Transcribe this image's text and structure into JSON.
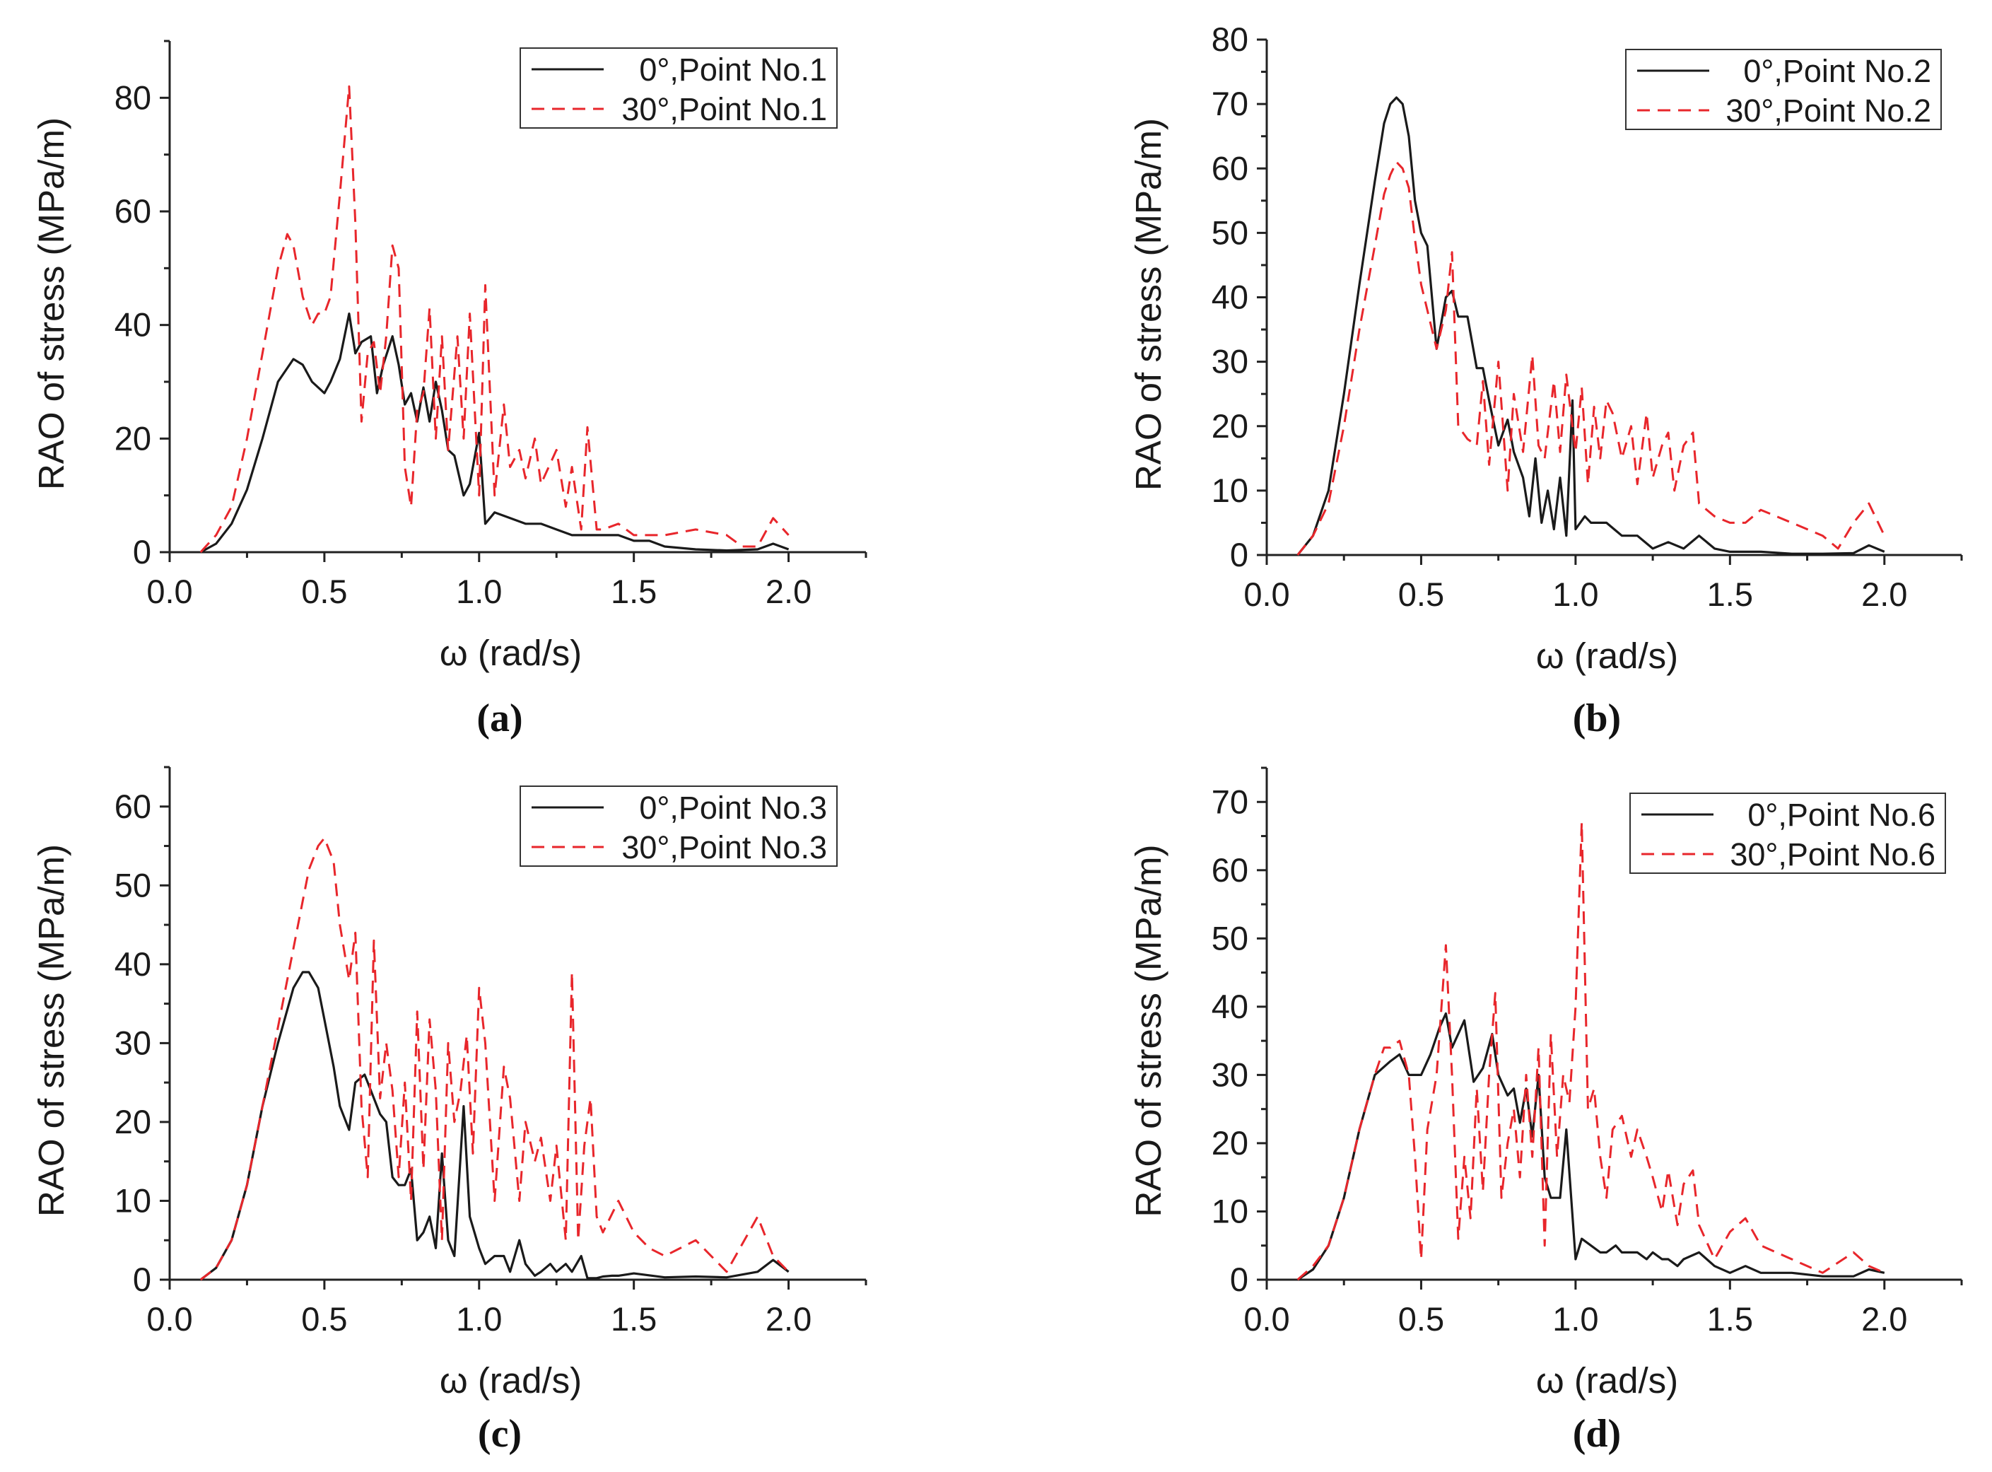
{
  "colors": {
    "series0": "#1a1a1a",
    "series1": "#e8262b"
  },
  "chart_data": [
    {
      "type": "line",
      "panel": "a",
      "caption": "(a)",
      "xlabel": "ω (rad/s)",
      "ylabel": "RAO of stress (MPa/m)",
      "xlim": [
        0.0,
        2.25
      ],
      "ylim": [
        0,
        90
      ],
      "xticks": [
        0.0,
        0.5,
        1.0,
        1.5,
        2.0
      ],
      "yticks": [
        0,
        20,
        40,
        60,
        80
      ],
      "grid": false,
      "legend": "top-right",
      "series": [
        {
          "name": "0°,Point No.1",
          "style": "solid",
          "x": [
            0.1,
            0.15,
            0.2,
            0.25,
            0.3,
            0.35,
            0.4,
            0.43,
            0.46,
            0.5,
            0.52,
            0.55,
            0.58,
            0.6,
            0.62,
            0.65,
            0.67,
            0.69,
            0.72,
            0.74,
            0.76,
            0.78,
            0.8,
            0.82,
            0.84,
            0.86,
            0.88,
            0.9,
            0.92,
            0.95,
            0.97,
            1.0,
            1.02,
            1.05,
            1.1,
            1.15,
            1.2,
            1.25,
            1.3,
            1.35,
            1.4,
            1.45,
            1.5,
            1.55,
            1.6,
            1.7,
            1.8,
            1.9,
            1.95,
            2.0
          ],
          "y": [
            0,
            1.5,
            5,
            11,
            20,
            30,
            34,
            33,
            30,
            28,
            30,
            34,
            42,
            35,
            37,
            38,
            28,
            33,
            38,
            33,
            26,
            28,
            23,
            29,
            23,
            30,
            25,
            18,
            17,
            10,
            12,
            21,
            5,
            7,
            6,
            5,
            5,
            4,
            3,
            3,
            3,
            3,
            2,
            2,
            1,
            0.5,
            0.3,
            0.5,
            1.5,
            0.5
          ]
        },
        {
          "name": "30°,Point No.1",
          "style": "dashed",
          "x": [
            0.1,
            0.15,
            0.2,
            0.25,
            0.3,
            0.35,
            0.38,
            0.4,
            0.43,
            0.46,
            0.48,
            0.5,
            0.52,
            0.55,
            0.58,
            0.6,
            0.62,
            0.64,
            0.66,
            0.68,
            0.7,
            0.72,
            0.74,
            0.76,
            0.78,
            0.8,
            0.82,
            0.84,
            0.86,
            0.88,
            0.9,
            0.93,
            0.95,
            0.97,
            1.0,
            1.02,
            1.05,
            1.08,
            1.1,
            1.13,
            1.15,
            1.18,
            1.2,
            1.25,
            1.28,
            1.3,
            1.33,
            1.35,
            1.38,
            1.4,
            1.45,
            1.5,
            1.55,
            1.6,
            1.7,
            1.8,
            1.85,
            1.9,
            1.95,
            2.0
          ],
          "y": [
            0,
            3,
            8,
            20,
            35,
            50,
            56,
            54,
            45,
            40,
            42,
            42,
            45,
            63,
            82,
            58,
            23,
            35,
            37,
            28,
            38,
            54,
            50,
            15,
            8,
            25,
            28,
            43,
            20,
            38,
            18,
            38,
            20,
            42,
            10,
            47,
            10,
            26,
            15,
            18,
            13,
            20,
            12,
            18,
            8,
            15,
            4,
            22,
            4,
            4,
            5,
            3,
            3,
            3,
            4,
            3,
            1,
            1,
            6,
            3
          ]
        }
      ]
    },
    {
      "type": "line",
      "panel": "b",
      "caption": "(b)",
      "xlabel": "ω (rad/s)",
      "ylabel": "RAO of stress (MPa/m)",
      "xlim": [
        0.0,
        2.25
      ],
      "ylim": [
        0,
        80
      ],
      "xticks": [
        0.0,
        0.5,
        1.0,
        1.5,
        2.0
      ],
      "yticks": [
        0,
        10,
        20,
        30,
        40,
        50,
        60,
        70,
        80
      ],
      "grid": false,
      "legend": "top-right",
      "series": [
        {
          "name": "0°,Point No.2",
          "style": "solid",
          "x": [
            0.1,
            0.15,
            0.2,
            0.25,
            0.3,
            0.35,
            0.38,
            0.4,
            0.42,
            0.44,
            0.46,
            0.48,
            0.5,
            0.52,
            0.55,
            0.58,
            0.6,
            0.62,
            0.65,
            0.68,
            0.7,
            0.72,
            0.75,
            0.78,
            0.8,
            0.83,
            0.85,
            0.87,
            0.89,
            0.91,
            0.93,
            0.95,
            0.97,
            0.99,
            1.0,
            1.03,
            1.05,
            1.1,
            1.15,
            1.2,
            1.25,
            1.3,
            1.35,
            1.4,
            1.45,
            1.5,
            1.6,
            1.7,
            1.8,
            1.9,
            1.95,
            2.0
          ],
          "y": [
            0,
            3,
            10,
            25,
            42,
            58,
            67,
            70,
            71,
            70,
            65,
            55,
            50,
            48,
            32,
            40,
            41,
            37,
            37,
            29,
            29,
            24,
            17,
            21,
            16,
            12,
            6,
            15,
            5,
            10,
            4,
            12,
            3,
            24,
            4,
            6,
            5,
            5,
            3,
            3,
            1,
            2,
            1,
            3,
            1,
            0.5,
            0.5,
            0.2,
            0.2,
            0.3,
            1.5,
            0.5
          ]
        },
        {
          "name": "30°,Point No.2",
          "style": "dashed",
          "x": [
            0.1,
            0.15,
            0.2,
            0.25,
            0.3,
            0.35,
            0.38,
            0.4,
            0.42,
            0.44,
            0.46,
            0.48,
            0.5,
            0.52,
            0.55,
            0.58,
            0.6,
            0.62,
            0.65,
            0.68,
            0.7,
            0.72,
            0.75,
            0.78,
            0.8,
            0.83,
            0.86,
            0.88,
            0.9,
            0.93,
            0.95,
            0.97,
            1.0,
            1.02,
            1.04,
            1.06,
            1.08,
            1.1,
            1.12,
            1.15,
            1.18,
            1.2,
            1.23,
            1.25,
            1.28,
            1.3,
            1.32,
            1.35,
            1.38,
            1.4,
            1.45,
            1.5,
            1.55,
            1.6,
            1.7,
            1.8,
            1.85,
            1.9,
            1.95,
            2.0
          ],
          "y": [
            0,
            3,
            8,
            20,
            35,
            48,
            56,
            59,
            61,
            60,
            57,
            49,
            42,
            38,
            32,
            38,
            47,
            20,
            18,
            17,
            27,
            14,
            30,
            10,
            25,
            16,
            31,
            17,
            15,
            27,
            16,
            28,
            16,
            26,
            11,
            23,
            15,
            24,
            22,
            15,
            20,
            11,
            22,
            12,
            17,
            19,
            10,
            17,
            19,
            8,
            6,
            5,
            5,
            7,
            5,
            3,
            1,
            5,
            8,
            3
          ]
        }
      ]
    },
    {
      "type": "line",
      "panel": "c",
      "caption": "(c)",
      "xlabel": "ω (rad/s)",
      "ylabel": "RAO of stress (MPa/m)",
      "xlim": [
        0.0,
        2.25
      ],
      "ylim": [
        0,
        65
      ],
      "xticks": [
        0.0,
        0.5,
        1.0,
        1.5,
        2.0
      ],
      "yticks": [
        0,
        10,
        20,
        30,
        40,
        50,
        60
      ],
      "grid": false,
      "legend": "top-right",
      "series": [
        {
          "name": "0°,Point No.3",
          "style": "solid",
          "x": [
            0.1,
            0.15,
            0.2,
            0.25,
            0.3,
            0.35,
            0.4,
            0.43,
            0.45,
            0.48,
            0.5,
            0.53,
            0.55,
            0.58,
            0.6,
            0.63,
            0.65,
            0.68,
            0.7,
            0.72,
            0.74,
            0.76,
            0.78,
            0.8,
            0.82,
            0.84,
            0.86,
            0.88,
            0.9,
            0.92,
            0.95,
            0.97,
            1.0,
            1.02,
            1.05,
            1.08,
            1.1,
            1.13,
            1.15,
            1.18,
            1.2,
            1.23,
            1.25,
            1.28,
            1.3,
            1.33,
            1.35,
            1.38,
            1.4,
            1.43,
            1.45,
            1.5,
            1.6,
            1.7,
            1.8,
            1.9,
            1.95,
            2.0
          ],
          "y": [
            0,
            1.5,
            5,
            12,
            22,
            30,
            37,
            39,
            39,
            37,
            33,
            27,
            22,
            19,
            25,
            26,
            24,
            21,
            20,
            13,
            12,
            12,
            14,
            5,
            6,
            8,
            4,
            16,
            5,
            3,
            22,
            8,
            4,
            2,
            3,
            3,
            1,
            5,
            2,
            0.5,
            1,
            2,
            1,
            2,
            1,
            3,
            0.2,
            0.2,
            0.4,
            0.5,
            0.5,
            0.8,
            0.3,
            0.4,
            0.3,
            1,
            2.5,
            1
          ]
        },
        {
          "name": "30°,Point No.3",
          "style": "dashed",
          "x": [
            0.1,
            0.15,
            0.2,
            0.25,
            0.3,
            0.35,
            0.4,
            0.43,
            0.45,
            0.48,
            0.5,
            0.53,
            0.55,
            0.58,
            0.6,
            0.62,
            0.64,
            0.66,
            0.68,
            0.7,
            0.72,
            0.74,
            0.76,
            0.78,
            0.8,
            0.82,
            0.84,
            0.86,
            0.88,
            0.9,
            0.92,
            0.94,
            0.96,
            0.98,
            1.0,
            1.02,
            1.05,
            1.08,
            1.1,
            1.13,
            1.15,
            1.18,
            1.2,
            1.23,
            1.25,
            1.28,
            1.3,
            1.32,
            1.34,
            1.36,
            1.38,
            1.4,
            1.45,
            1.5,
            1.55,
            1.6,
            1.7,
            1.8,
            1.9,
            1.95,
            2.0
          ],
          "y": [
            0,
            1.5,
            5,
            12,
            22,
            32,
            42,
            48,
            52,
            55,
            56,
            53,
            45,
            38,
            44,
            22,
            13,
            43,
            23,
            30,
            24,
            13,
            25,
            10,
            34,
            14,
            33,
            24,
            5,
            30,
            20,
            24,
            31,
            16,
            37,
            30,
            10,
            27,
            23,
            10,
            20,
            15,
            18,
            10,
            17,
            5,
            39,
            5,
            17,
            23,
            8,
            6,
            10,
            6,
            4,
            3,
            5,
            1,
            8,
            3,
            1
          ]
        }
      ]
    },
    {
      "type": "line",
      "panel": "d",
      "caption": "(d)",
      "xlabel": "ω (rad/s)",
      "ylabel": "RAO of stress (MPa/m)",
      "xlim": [
        0.0,
        2.25
      ],
      "ylim": [
        0,
        75
      ],
      "xticks": [
        0.0,
        0.5,
        1.0,
        1.5,
        2.0
      ],
      "yticks": [
        0,
        10,
        20,
        30,
        40,
        50,
        60,
        70
      ],
      "grid": false,
      "legend": "top-right",
      "series": [
        {
          "name": "0°,Point No.6",
          "style": "solid",
          "x": [
            0.1,
            0.15,
            0.2,
            0.25,
            0.3,
            0.35,
            0.4,
            0.43,
            0.46,
            0.5,
            0.53,
            0.56,
            0.58,
            0.6,
            0.62,
            0.64,
            0.67,
            0.7,
            0.73,
            0.75,
            0.78,
            0.8,
            0.82,
            0.84,
            0.86,
            0.88,
            0.9,
            0.92,
            0.95,
            0.97,
            1.0,
            1.02,
            1.05,
            1.08,
            1.1,
            1.13,
            1.15,
            1.18,
            1.2,
            1.23,
            1.25,
            1.28,
            1.3,
            1.33,
            1.35,
            1.4,
            1.45,
            1.5,
            1.55,
            1.6,
            1.7,
            1.8,
            1.9,
            1.95,
            2.0
          ],
          "y": [
            0,
            1.5,
            5,
            12,
            22,
            30,
            32,
            33,
            30,
            30,
            33,
            37,
            39,
            34,
            36,
            38,
            29,
            31,
            36,
            30,
            27,
            28,
            23,
            28,
            21,
            30,
            15,
            12,
            12,
            22,
            3,
            6,
            5,
            4,
            4,
            5,
            4,
            4,
            4,
            3,
            4,
            3,
            3,
            2,
            3,
            4,
            2,
            1,
            2,
            1,
            1,
            0.5,
            0.5,
            1.5,
            1
          ]
        },
        {
          "name": "30°,Point No.6",
          "style": "dashed",
          "x": [
            0.1,
            0.15,
            0.2,
            0.25,
            0.3,
            0.35,
            0.38,
            0.4,
            0.43,
            0.46,
            0.48,
            0.5,
            0.52,
            0.55,
            0.58,
            0.6,
            0.62,
            0.64,
            0.66,
            0.68,
            0.7,
            0.72,
            0.74,
            0.76,
            0.78,
            0.8,
            0.82,
            0.84,
            0.86,
            0.88,
            0.9,
            0.92,
            0.94,
            0.96,
            0.98,
            1.0,
            1.02,
            1.04,
            1.06,
            1.08,
            1.1,
            1.12,
            1.15,
            1.18,
            1.2,
            1.23,
            1.25,
            1.28,
            1.3,
            1.33,
            1.35,
            1.38,
            1.4,
            1.45,
            1.5,
            1.55,
            1.6,
            1.7,
            1.8,
            1.9,
            1.95,
            2.0
          ],
          "y": [
            0,
            2,
            5,
            12,
            22,
            30,
            34,
            34,
            35,
            30,
            18,
            3,
            22,
            30,
            49,
            30,
            6,
            18,
            9,
            28,
            13,
            30,
            42,
            12,
            20,
            25,
            15,
            30,
            18,
            34,
            5,
            36,
            18,
            30,
            26,
            40,
            67,
            25,
            28,
            18,
            12,
            22,
            24,
            18,
            22,
            18,
            15,
            10,
            16,
            8,
            14,
            16,
            8,
            3,
            7,
            9,
            5,
            3,
            1,
            4,
            2,
            1
          ]
        }
      ]
    }
  ]
}
